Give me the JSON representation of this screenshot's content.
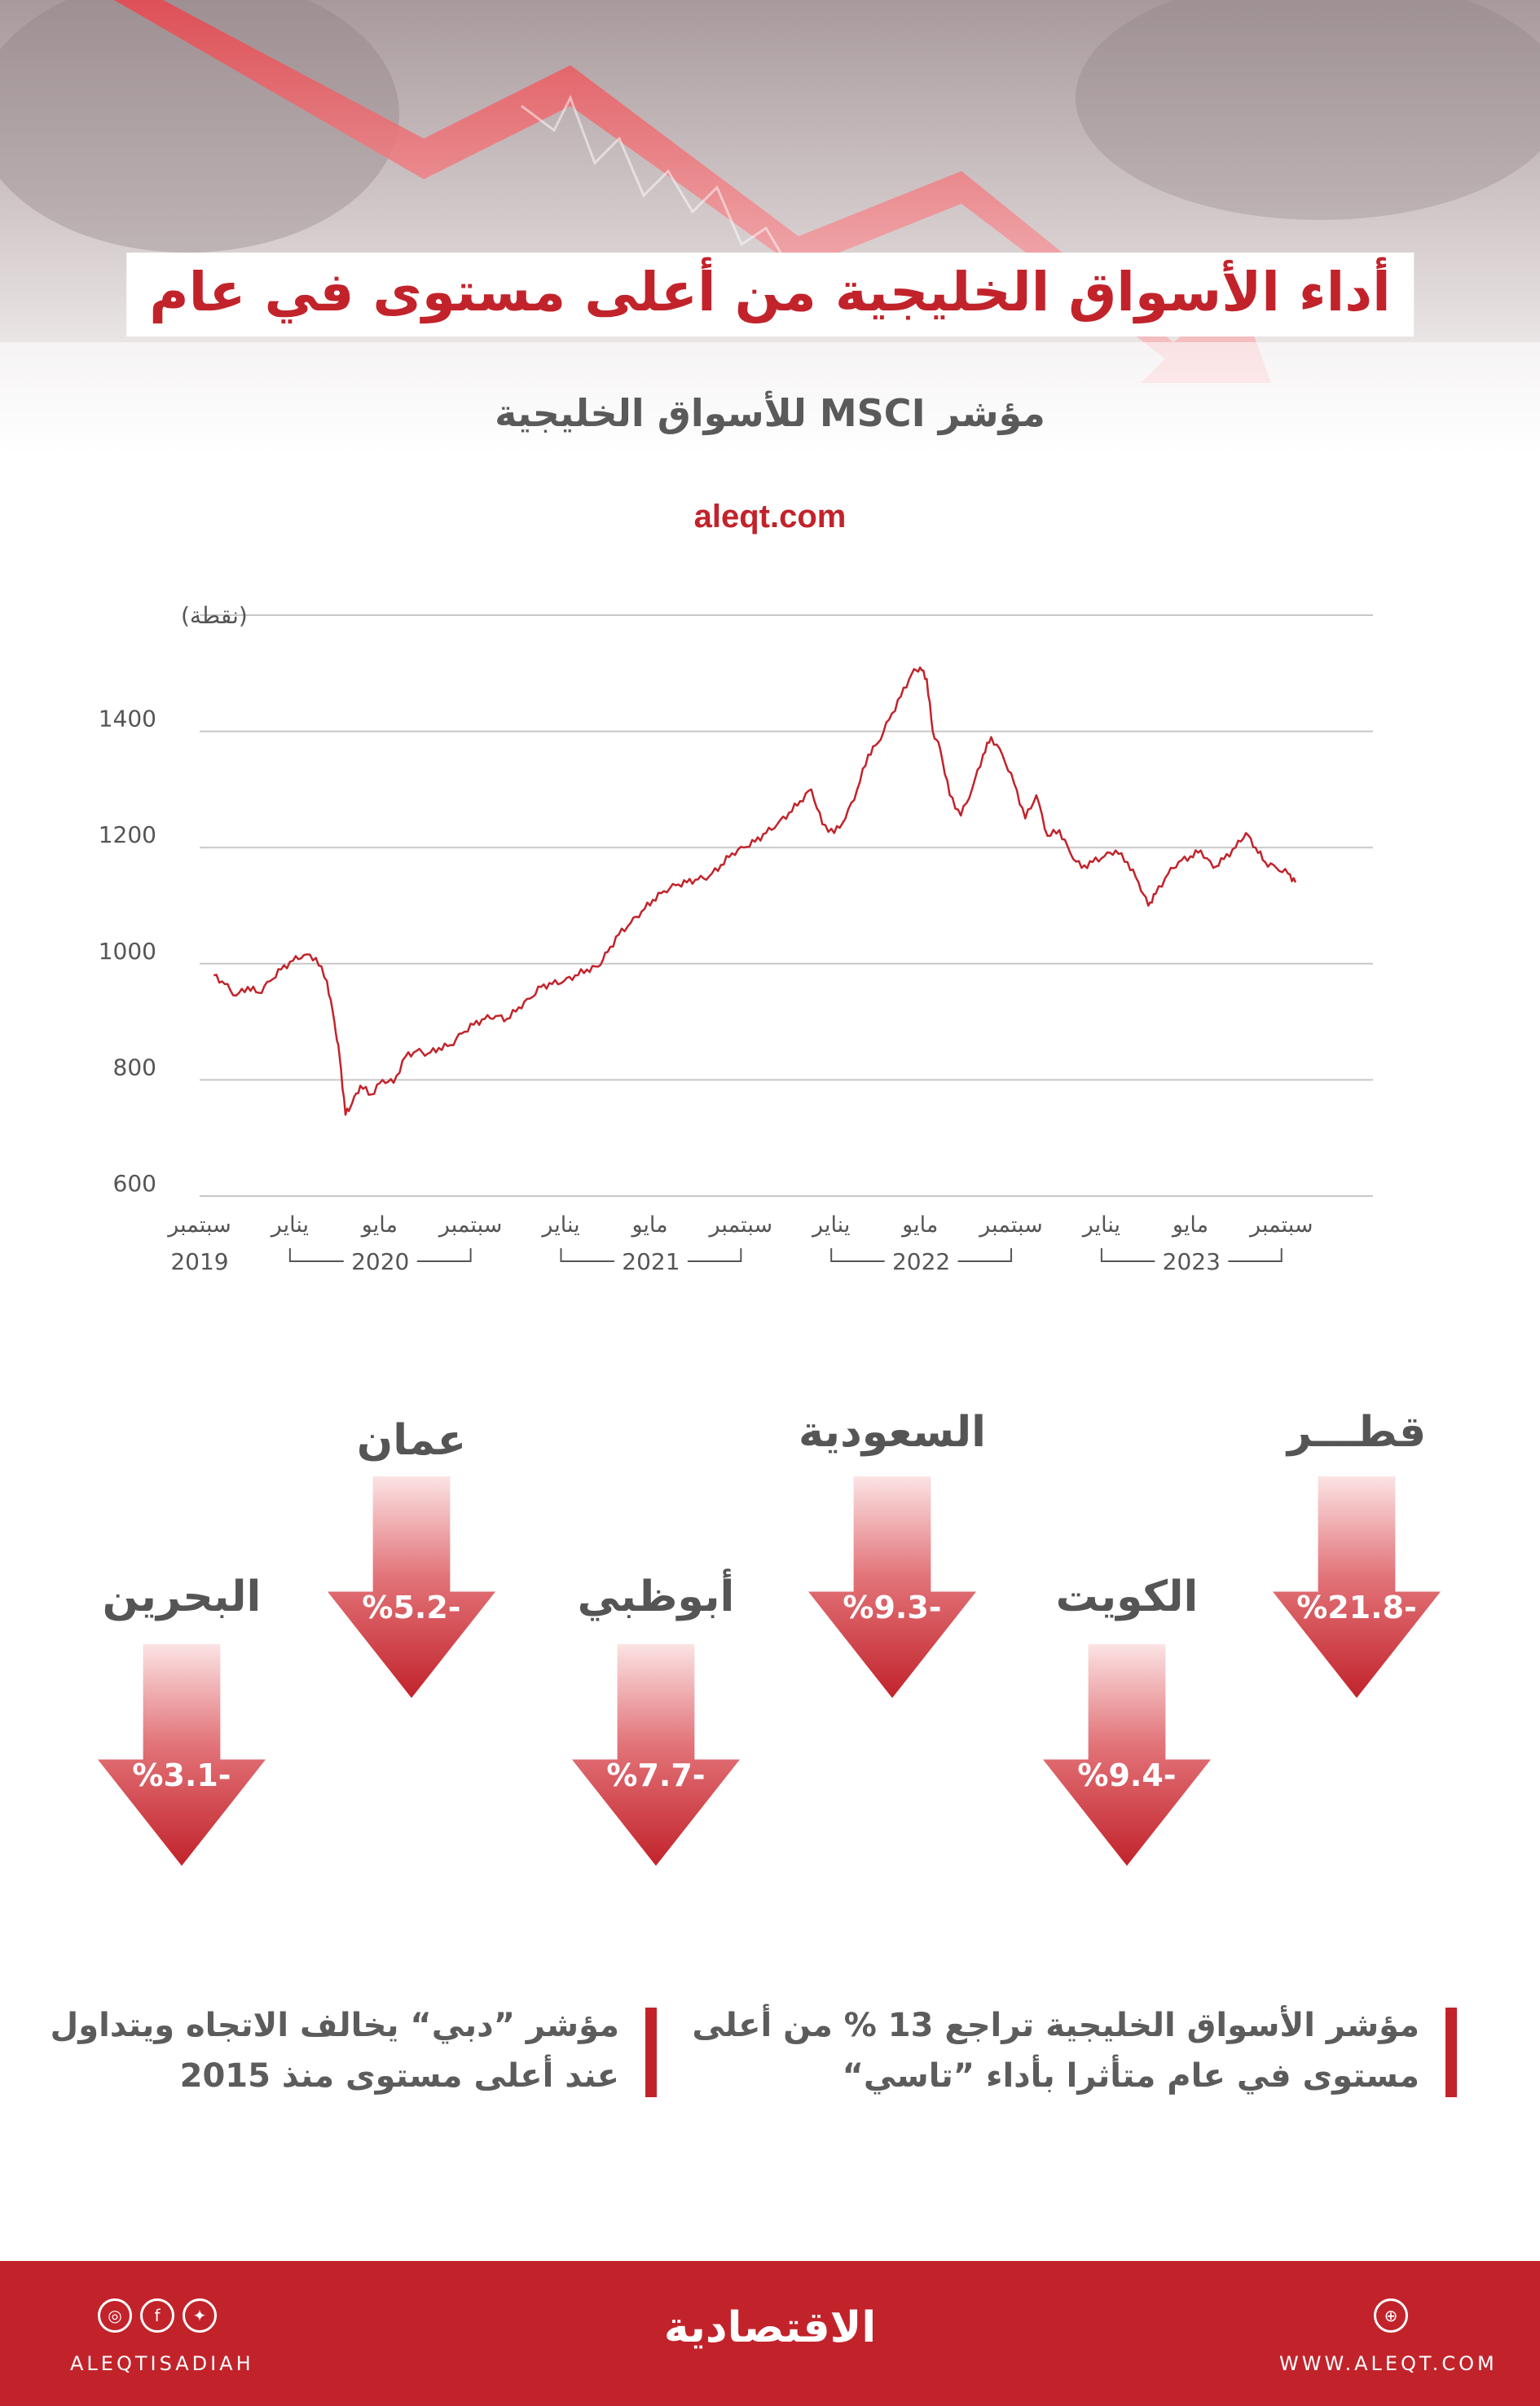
{
  "header": {
    "title": "أداء الأسواق الخليجية من أعلى مستوى في عام"
  },
  "chart_header": {
    "subtitle": "مؤشر MSCI للأسواق الخليجية",
    "source": "aleqt.com"
  },
  "chart_data": {
    "type": "line",
    "ylabel": "(نقطة)",
    "ylim": [
      600,
      1600
    ],
    "yticks": [
      600,
      800,
      1000,
      1200,
      1400
    ],
    "grid": true,
    "x_range": [
      "2019-09",
      "2023-10"
    ],
    "month_labels": [
      {
        "month": "2019-09",
        "label": "سبتمبر"
      },
      {
        "month": "2020-01",
        "label": "يناير"
      },
      {
        "month": "2020-05",
        "label": "مايو"
      },
      {
        "month": "2020-09",
        "label": "سبتمبر"
      },
      {
        "month": "2021-01",
        "label": "يناير"
      },
      {
        "month": "2021-05",
        "label": "مايو"
      },
      {
        "month": "2021-09",
        "label": "سبتمبر"
      },
      {
        "month": "2022-01",
        "label": "يناير"
      },
      {
        "month": "2022-05",
        "label": "مايو"
      },
      {
        "month": "2022-09",
        "label": "سبتمبر"
      },
      {
        "month": "2023-01",
        "label": "يناير"
      },
      {
        "month": "2023-05",
        "label": "مايو"
      },
      {
        "month": "2023-09",
        "label": "سبتمبر"
      }
    ],
    "year_labels": [
      {
        "year": "2019",
        "from": "2019-09",
        "to": "2019-09"
      },
      {
        "year": "2020",
        "from": "2020-01",
        "to": "2020-09"
      },
      {
        "year": "2021",
        "from": "2021-01",
        "to": "2021-09"
      },
      {
        "year": "2022",
        "from": "2022-01",
        "to": "2022-09"
      },
      {
        "year": "2023",
        "from": "2023-01",
        "to": "2023-09"
      }
    ],
    "series": [
      {
        "color": "#c2232b",
        "points": [
          [
            "2019-09-20",
            980
          ],
          [
            "2019-10-05",
            965
          ],
          [
            "2019-10-20",
            945
          ],
          [
            "2019-11-05",
            960
          ],
          [
            "2019-11-20",
            950
          ],
          [
            "2019-12-05",
            970
          ],
          [
            "2019-12-20",
            990
          ],
          [
            "2020-01-05",
            1005
          ],
          [
            "2020-01-20",
            1015
          ],
          [
            "2020-02-05",
            1010
          ],
          [
            "2020-02-20",
            970
          ],
          [
            "2020-03-01",
            900
          ],
          [
            "2020-03-08",
            840
          ],
          [
            "2020-03-16",
            740
          ],
          [
            "2020-03-25",
            760
          ],
          [
            "2020-04-05",
            790
          ],
          [
            "2020-04-20",
            775
          ],
          [
            "2020-05-05",
            800
          ],
          [
            "2020-05-20",
            795
          ],
          [
            "2020-06-05",
            840
          ],
          [
            "2020-06-20",
            850
          ],
          [
            "2020-07-05",
            845
          ],
          [
            "2020-07-20",
            855
          ],
          [
            "2020-08-05",
            860
          ],
          [
            "2020-08-20",
            880
          ],
          [
            "2020-09-05",
            895
          ],
          [
            "2020-09-20",
            905
          ],
          [
            "2020-10-05",
            910
          ],
          [
            "2020-10-20",
            905
          ],
          [
            "2020-11-05",
            925
          ],
          [
            "2020-11-20",
            940
          ],
          [
            "2020-12-05",
            960
          ],
          [
            "2020-12-20",
            965
          ],
          [
            "2021-01-05",
            970
          ],
          [
            "2021-01-20",
            980
          ],
          [
            "2021-02-05",
            990
          ],
          [
            "2021-02-20",
            995
          ],
          [
            "2021-03-05",
            1020
          ],
          [
            "2021-03-20",
            1050
          ],
          [
            "2021-04-05",
            1070
          ],
          [
            "2021-04-20",
            1090
          ],
          [
            "2021-05-05",
            1110
          ],
          [
            "2021-05-20",
            1125
          ],
          [
            "2021-06-05",
            1135
          ],
          [
            "2021-06-20",
            1140
          ],
          [
            "2021-07-05",
            1145
          ],
          [
            "2021-07-20",
            1150
          ],
          [
            "2021-08-05",
            1170
          ],
          [
            "2021-08-20",
            1190
          ],
          [
            "2021-09-05",
            1200
          ],
          [
            "2021-09-20",
            1210
          ],
          [
            "2021-10-05",
            1225
          ],
          [
            "2021-10-20",
            1240
          ],
          [
            "2021-11-05",
            1260
          ],
          [
            "2021-11-20",
            1280
          ],
          [
            "2021-12-05",
            1300
          ],
          [
            "2021-12-20",
            1240
          ],
          [
            "2022-01-05",
            1225
          ],
          [
            "2022-01-20",
            1250
          ],
          [
            "2022-02-05",
            1300
          ],
          [
            "2022-02-20",
            1360
          ],
          [
            "2022-03-05",
            1380
          ],
          [
            "2022-03-20",
            1420
          ],
          [
            "2022-04-05",
            1460
          ],
          [
            "2022-04-20",
            1500
          ],
          [
            "2022-05-01",
            1510
          ],
          [
            "2022-05-10",
            1490
          ],
          [
            "2022-05-18",
            1400
          ],
          [
            "2022-05-28",
            1370
          ],
          [
            "2022-06-10",
            1290
          ],
          [
            "2022-06-25",
            1255
          ],
          [
            "2022-07-10",
            1300
          ],
          [
            "2022-07-25",
            1360
          ],
          [
            "2022-08-05",
            1390
          ],
          [
            "2022-08-20",
            1360
          ],
          [
            "2022-09-05",
            1310
          ],
          [
            "2022-09-20",
            1250
          ],
          [
            "2022-10-05",
            1290
          ],
          [
            "2022-10-20",
            1220
          ],
          [
            "2022-11-05",
            1230
          ],
          [
            "2022-11-20",
            1190
          ],
          [
            "2022-12-05",
            1165
          ],
          [
            "2022-12-20",
            1175
          ],
          [
            "2023-01-05",
            1185
          ],
          [
            "2023-01-20",
            1195
          ],
          [
            "2023-02-05",
            1175
          ],
          [
            "2023-02-20",
            1140
          ],
          [
            "2023-03-05",
            1100
          ],
          [
            "2023-03-15",
            1120
          ],
          [
            "2023-04-01",
            1155
          ],
          [
            "2023-04-15",
            1175
          ],
          [
            "2023-05-01",
            1185
          ],
          [
            "2023-05-15",
            1195
          ],
          [
            "2023-06-01",
            1165
          ],
          [
            "2023-06-15",
            1180
          ],
          [
            "2023-07-01",
            1200
          ],
          [
            "2023-07-15",
            1225
          ],
          [
            "2023-07-28",
            1200
          ],
          [
            "2023-08-10",
            1175
          ],
          [
            "2023-08-25",
            1165
          ],
          [
            "2023-09-10",
            1155
          ],
          [
            "2023-09-20",
            1140
          ]
        ]
      }
    ]
  },
  "markets": [
    {
      "name": "قطـــر",
      "change": "%21.8-"
    },
    {
      "name": "السعودية",
      "change": "%9.3-"
    },
    {
      "name": "عمان",
      "change": "%5.2-"
    },
    {
      "name": "الكويت",
      "change": "%9.4-"
    },
    {
      "name": "أبوظبي",
      "change": "%7.7-"
    },
    {
      "name": "البحرين",
      "change": "%3.1-"
    }
  ],
  "notes": {
    "right": [
      "مؤشر الأسواق الخليجية تراجع 13 % من أعلى",
      "مستوى في عام متأثرا بأداء ”تاسي“"
    ],
    "left": [
      "مؤشر ”دبي“ يخالف الاتجاه ويتداول",
      "عند أعلى مستوى منذ 2015"
    ]
  },
  "footer": {
    "handle": "ALEQTISADIAH",
    "website": "WWW.ALEQT.COM",
    "logo": "الاقتصادية",
    "icons": [
      "instagram-icon",
      "facebook-icon",
      "twitter-icon",
      "web-icon"
    ]
  },
  "colors": {
    "accent": "#c2232b",
    "text_gray": "#555555",
    "grid": "#c8c8c8"
  }
}
